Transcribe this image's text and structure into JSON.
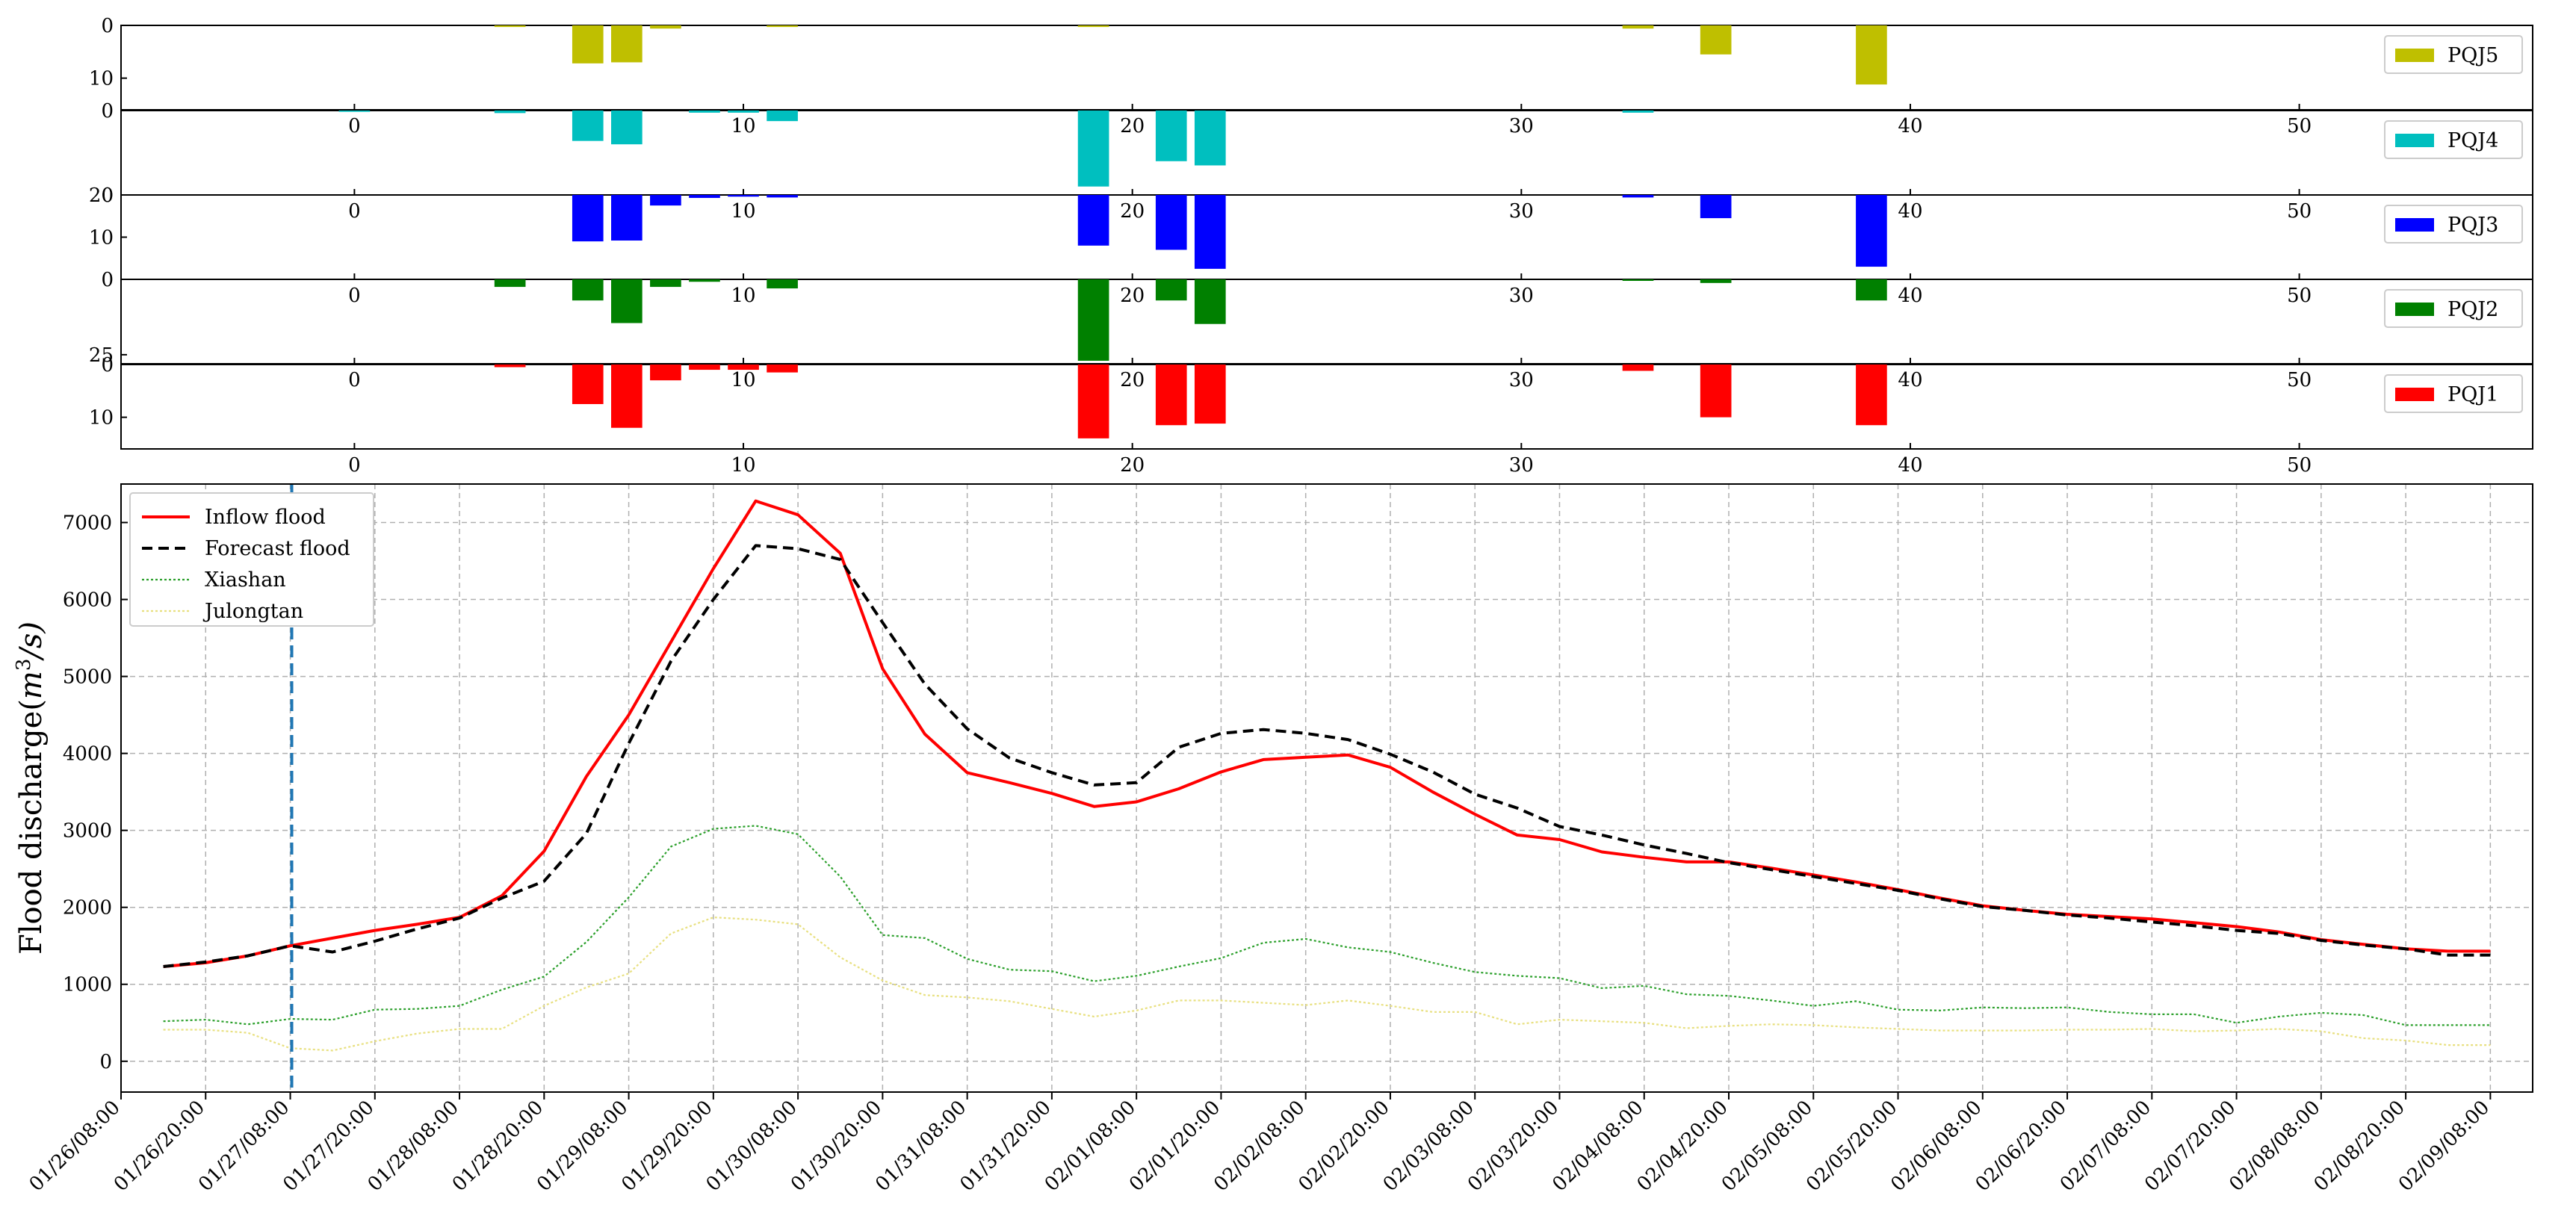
{
  "chart_data": [
    {
      "type": "bar",
      "name": "rainfall-panels",
      "x_ticks": [
        0,
        10,
        20,
        30,
        40,
        50
      ],
      "xlim": [
        -6,
        56
      ],
      "series": [
        {
          "name": "PQJ5",
          "color": "#bfbf00",
          "ylim_inverted": [
            0,
            16
          ],
          "y_ticks": [
            0,
            10
          ],
          "values": [
            0,
            0,
            0,
            0,
            0.3,
            0,
            7.2,
            7.0,
            0.6,
            0,
            0,
            0.3,
            0,
            0,
            0,
            0,
            0,
            0,
            0,
            0.3,
            0,
            0,
            0,
            0,
            0,
            0,
            0,
            0,
            0,
            0,
            0,
            0,
            0,
            0.6,
            0,
            5.5,
            0,
            0,
            0,
            11.2,
            0,
            0,
            0,
            0,
            0,
            0,
            0,
            0,
            0,
            0,
            0,
            0,
            0,
            0,
            0,
            0
          ]
        },
        {
          "name": "PQJ4",
          "color": "#00bfbf",
          "ylim_inverted": [
            0,
            20
          ],
          "y_ticks": [
            0,
            20
          ],
          "values": [
            0.3,
            0,
            0,
            0,
            0.6,
            0,
            7.2,
            8.0,
            0,
            0.5,
            0.5,
            2.5,
            0,
            0,
            0,
            0,
            0,
            0,
            0,
            18.0,
            0,
            12.0,
            13.0,
            0,
            0,
            0,
            0,
            0,
            0,
            0,
            0,
            0,
            0,
            0.5,
            0,
            0,
            0,
            0,
            0,
            0,
            0,
            0,
            0,
            0,
            0,
            0,
            0,
            0,
            0,
            0,
            0,
            0,
            0,
            0,
            0,
            0
          ]
        },
        {
          "name": "PQJ3",
          "color": "#0000ff",
          "ylim_inverted": [
            0,
            20
          ],
          "y_ticks": [
            0,
            10
          ],
          "values": [
            0,
            0,
            0,
            0,
            0,
            0,
            11.0,
            10.8,
            2.5,
            0.7,
            0.4,
            0.6,
            0,
            0,
            0,
            0,
            0,
            0,
            0,
            12.0,
            0,
            13.0,
            17.5,
            0,
            0,
            0,
            0,
            0,
            0,
            0,
            0,
            0,
            0,
            0.6,
            0,
            5.5,
            0,
            0,
            0,
            17.0,
            0,
            0,
            0,
            0,
            0,
            0,
            0,
            0,
            0,
            0,
            0,
            0,
            0,
            0,
            0,
            0
          ]
        },
        {
          "name": "PQJ2",
          "color": "#008000",
          "ylim_inverted": [
            0,
            28
          ],
          "y_ticks": [
            0,
            25
          ],
          "values": [
            0,
            0,
            0,
            0,
            2.5,
            0,
            7.0,
            14.5,
            2.5,
            0.8,
            0,
            3.0,
            0,
            0,
            0,
            0,
            0,
            0,
            0,
            27.0,
            0,
            7.0,
            14.8,
            0,
            0,
            0,
            0,
            0,
            0,
            0,
            0,
            0,
            0,
            0.5,
            0,
            1.2,
            0,
            0,
            0,
            7.0,
            0,
            0,
            0,
            0,
            0,
            0,
            0,
            0,
            0,
            0,
            0,
            0,
            0,
            0,
            0,
            0
          ]
        },
        {
          "name": "PQJ1",
          "color": "#ff0000",
          "ylim_inverted": [
            0,
            16
          ],
          "y_ticks": [
            0,
            10
          ],
          "values": [
            0,
            0,
            0,
            0,
            0.5,
            0,
            7.5,
            12.0,
            3.0,
            1.0,
            1.0,
            1.5,
            0,
            0,
            0,
            0,
            0,
            0,
            0,
            14.0,
            0,
            11.5,
            11.2,
            0,
            0,
            0,
            0,
            0,
            0,
            0,
            0,
            0,
            0,
            1.2,
            0,
            10.0,
            0,
            0,
            0,
            11.5,
            0,
            0,
            0,
            0,
            0,
            0,
            0,
            0,
            0,
            0,
            0,
            0,
            0,
            0,
            0,
            0
          ]
        }
      ]
    },
    {
      "type": "line",
      "name": "flood-discharge",
      "ylabel": "Flood discharge(",
      "ylabel_unit_base": "m",
      "ylabel_unit_exp": "3",
      "ylabel_unit_tail": "/s)",
      "ylim": [
        -400,
        7500
      ],
      "y_ticks": [
        0,
        1000,
        2000,
        3000,
        4000,
        5000,
        6000,
        7000
      ],
      "x_labels": [
        "01/26/08:00",
        "01/26/20:00",
        "01/27/08:00",
        "01/27/20:00",
        "01/28/08:00",
        "01/28/20:00",
        "01/29/08:00",
        "01/29/20:00",
        "01/30/08:00",
        "01/30/20:00",
        "01/31/08:00",
        "01/31/20:00",
        "02/01/08:00",
        "02/01/20:00",
        "02/02/08:00",
        "02/02/20:00",
        "02/03/08:00",
        "02/03/20:00",
        "02/04/08:00",
        "02/04/20:00",
        "02/05/08:00",
        "02/05/20:00",
        "02/06/08:00",
        "02/06/20:00",
        "02/07/08:00",
        "02/07/20:00",
        "02/08/08:00",
        "02/08/20:00",
        "02/09/08:00"
      ],
      "x_step_hours": 6,
      "x_range_steps": [
        -1,
        56
      ],
      "forecast_start_step": 3,
      "series": [
        {
          "name": "Inflow flood",
          "color": "#ff0000",
          "style": "solid",
          "values": [
            1230,
            1280,
            1370,
            1500,
            1600,
            1700,
            1780,
            1870,
            2150,
            2730,
            3700,
            4500,
            5450,
            6400,
            7280,
            7100,
            6600,
            5100,
            4250,
            3750,
            3620,
            3480,
            3310,
            3370,
            3540,
            3760,
            3920,
            3950,
            3980,
            3820,
            3500,
            3210,
            2940,
            2880,
            2720,
            2650,
            2590,
            2590,
            2510,
            2420,
            2330,
            2230,
            2120,
            2020,
            1960,
            1910,
            1880,
            1850,
            1800,
            1750,
            1680,
            1580,
            1520,
            1460,
            1430,
            1430
          ]
        },
        {
          "name": "Forecast flood",
          "color": "#000000",
          "style": "dashed",
          "values": [
            1230,
            1290,
            1370,
            1500,
            1420,
            1560,
            1720,
            1860,
            2120,
            2340,
            2960,
            4130,
            5200,
            6000,
            6700,
            6660,
            6520,
            5700,
            4900,
            4320,
            3940,
            3750,
            3590,
            3620,
            4080,
            4260,
            4310,
            4260,
            4180,
            3990,
            3760,
            3470,
            3290,
            3050,
            2940,
            2810,
            2700,
            2580,
            2490,
            2400,
            2310,
            2220,
            2110,
            2010,
            1960,
            1900,
            1860,
            1810,
            1760,
            1700,
            1660,
            1570,
            1510,
            1460,
            1380,
            1380
          ]
        },
        {
          "name": "Xiashan",
          "color": "#2ca02c",
          "style": "dotted",
          "values": [
            520,
            540,
            480,
            550,
            540,
            670,
            680,
            720,
            930,
            1100,
            1550,
            2130,
            2790,
            3020,
            3060,
            2950,
            2400,
            1640,
            1600,
            1330,
            1190,
            1170,
            1040,
            1110,
            1230,
            1340,
            1540,
            1590,
            1480,
            1420,
            1280,
            1160,
            1110,
            1080,
            950,
            980,
            870,
            850,
            790,
            720,
            780,
            670,
            660,
            700,
            690,
            700,
            640,
            610,
            610,
            500,
            580,
            630,
            600,
            470,
            470,
            470
          ]
        },
        {
          "name": "Julongtan",
          "color": "#e8e080",
          "style": "dotted",
          "values": [
            410,
            410,
            370,
            170,
            140,
            260,
            360,
            420,
            420,
            720,
            960,
            1140,
            1660,
            1870,
            1840,
            1780,
            1350,
            1050,
            860,
            830,
            780,
            680,
            580,
            660,
            790,
            790,
            760,
            730,
            790,
            720,
            640,
            640,
            480,
            540,
            520,
            500,
            430,
            460,
            480,
            470,
            440,
            420,
            400,
            400,
            400,
            410,
            410,
            420,
            390,
            400,
            420,
            390,
            300,
            270,
            210,
            210
          ]
        }
      ]
    }
  ]
}
